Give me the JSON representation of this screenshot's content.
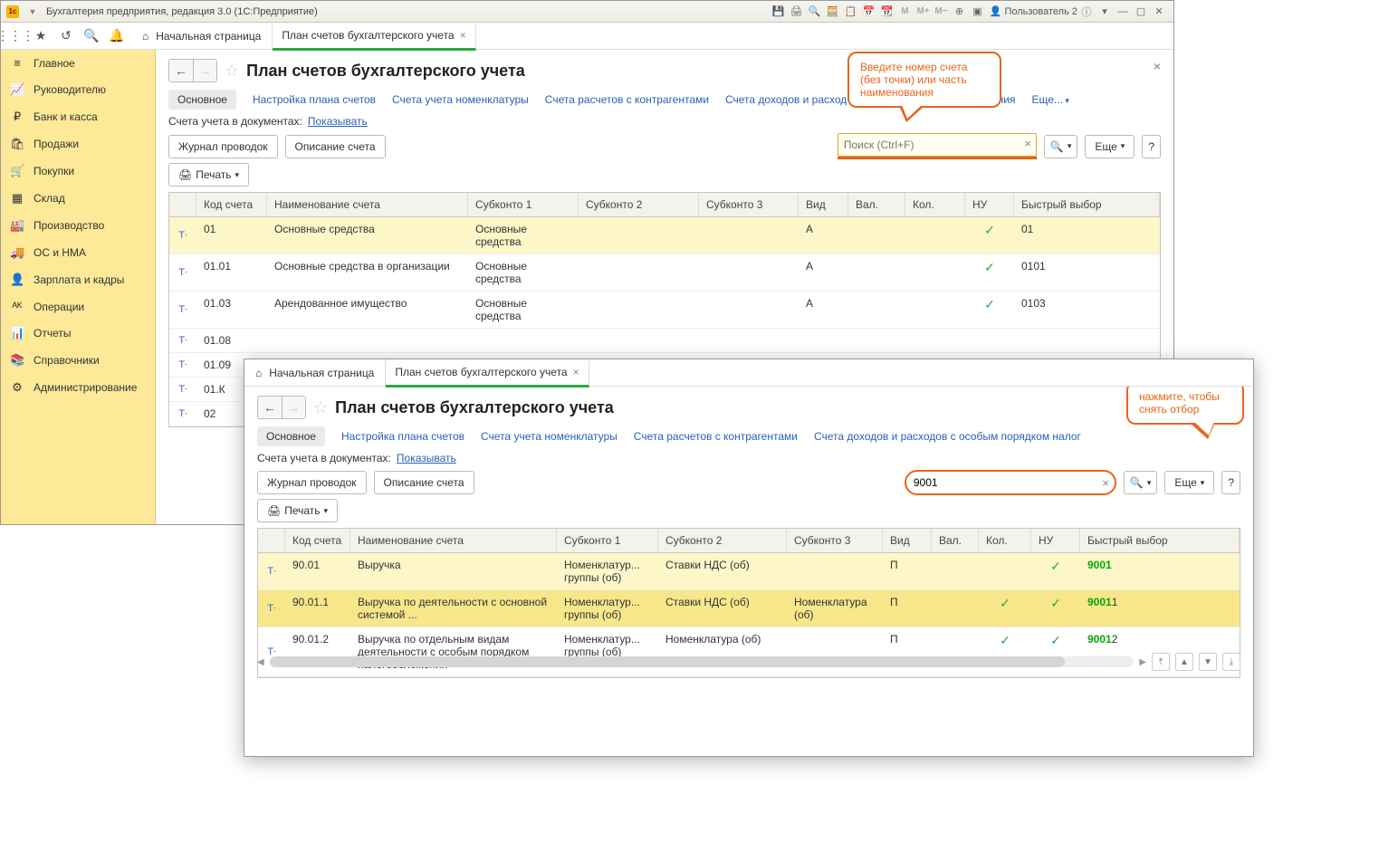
{
  "titlebar": {
    "app_title": "Бухгалтерия предприятия, редакция 3.0  (1С:Предприятие)",
    "user_label": "Пользователь 2"
  },
  "top_tabs": {
    "home": "Начальная страница",
    "open_tab": "План счетов бухгалтерского учета"
  },
  "sidebar": {
    "items": [
      {
        "icon": "≡",
        "label": "Главное"
      },
      {
        "icon": "📈",
        "label": "Руководителю"
      },
      {
        "icon": "₽",
        "label": "Банк и касса"
      },
      {
        "icon": "🛍",
        "label": "Продажи"
      },
      {
        "icon": "🛒",
        "label": "Покупки"
      },
      {
        "icon": "▦",
        "label": "Склад"
      },
      {
        "icon": "🏭",
        "label": "Производство"
      },
      {
        "icon": "🚚",
        "label": "ОС и НМА"
      },
      {
        "icon": "👤",
        "label": "Зарплата и кадры"
      },
      {
        "icon": "ᴬᴷ",
        "label": "Операции"
      },
      {
        "icon": "📊",
        "label": "Отчеты"
      },
      {
        "icon": "📚",
        "label": "Справочники"
      },
      {
        "icon": "⚙",
        "label": "Администрирование"
      }
    ]
  },
  "page": {
    "title": "План счетов бухгалтерского учета",
    "tabs": [
      "Основное",
      "Настройка плана счетов",
      "Счета учета номенклатуры",
      "Счета расчетов с контрагентами",
      "Счета доходов и расход"
    ],
    "tab_frag_end": "ложения",
    "more": "Еще...",
    "info_label": "Счета учета в документах:",
    "info_link": "Показывать",
    "btn_journal": "Журнал проводок",
    "btn_describe": "Описание счета",
    "btn_print": "Печать",
    "search_placeholder": "Поиск (Ctrl+F)",
    "btn_more": "Еще",
    "columns": [
      "Код счета",
      "Наименование счета",
      "Субконто 1",
      "Субконто 2",
      "Субконто 3",
      "Вид",
      "Вал.",
      "Кол.",
      "НУ",
      "Быстрый выбор"
    ],
    "close_x": "×"
  },
  "callout1": "Введите номер счета (без точки) или часть наименования",
  "callout2": "нажмите, чтобы снять отбор",
  "table1": {
    "rows": [
      {
        "code": "01",
        "name": "Основные средства",
        "s1": "Основные средства",
        "vid": "А",
        "nu": true,
        "qb": "01"
      },
      {
        "code": "01.01",
        "name": "Основные средства в организации",
        "s1": "Основные средства",
        "vid": "А",
        "nu": true,
        "qb": "0101"
      },
      {
        "code": "01.03",
        "name": "Арендованное имущество",
        "s1": "Основные средства",
        "vid": "А",
        "nu": true,
        "qb": "0103"
      },
      {
        "code": "01.08",
        "name": "",
        "s1": "",
        "vid": "",
        "nu": false,
        "qb": ""
      },
      {
        "code": "01.09",
        "name": "",
        "s1": "",
        "vid": "",
        "nu": false,
        "qb": ""
      },
      {
        "code": "01.К",
        "name": "",
        "s1": "",
        "vid": "",
        "nu": false,
        "qb": ""
      },
      {
        "code": "02",
        "name": "",
        "s1": "",
        "vid": "",
        "nu": false,
        "qb": ""
      }
    ]
  },
  "window2": {
    "search_value": "9001",
    "tabs_long": "Счета доходов и расходов с особым порядком налог",
    "rows": [
      {
        "code": "90.01",
        "name": "Выручка",
        "s1": "Номенклатур... группы (об)",
        "s2": "Ставки НДС (об)",
        "s3": "",
        "vid": "П",
        "kol": false,
        "nu": true,
        "qb_b": "9001",
        "qb_tail": ""
      },
      {
        "code": "90.01.1",
        "name": "Выручка по деятельности с основной системой ...",
        "s1": "Номенклатур... группы (об)",
        "s2": "Ставки НДС (об)",
        "s3": "Номенклатура (об)",
        "vid": "П",
        "kol": true,
        "nu": true,
        "qb_b": "9001",
        "qb_tail": "1"
      },
      {
        "code": "90.01.2",
        "name": "Выручка по отдельным видам деятельности с особым порядком налогообложения",
        "s1": "Номенклатур... группы (об)",
        "s2": "Номенклатура (об)",
        "s3": "",
        "vid": "П",
        "kol": true,
        "nu": true,
        "qb_b": "9001",
        "qb_tail": "2"
      }
    ]
  },
  "colors": {
    "sidebar_bg": "#fde998",
    "accent_green": "#2aa83f",
    "callout": "#e8641b",
    "link": "#2960b5",
    "search_border": "#e8a03a",
    "row_hl": "#fdf6c9",
    "row_hl2": "#f8e78a"
  }
}
